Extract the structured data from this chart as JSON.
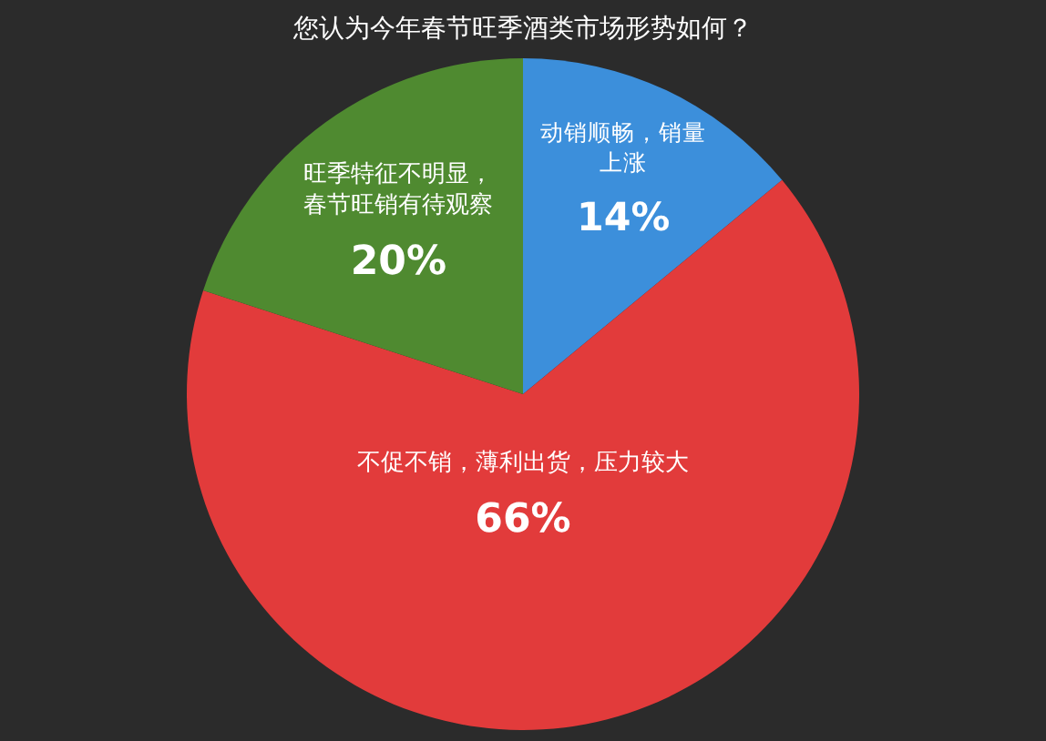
{
  "chart_data": {
    "type": "pie",
    "title": "您认为今年春节旺季酒类市场形势如何？",
    "categories": [
      "动销顺畅，销量上涨",
      "不促不销，薄利出货，压力较大",
      "旺季特征不明显，春节旺销有待观察"
    ],
    "values": [
      14,
      66,
      20
    ],
    "value_labels": [
      "14%",
      "66%",
      "20%"
    ],
    "colors": [
      "#3c8fdb",
      "#e23b3b",
      "#4f8a30"
    ],
    "legend": false
  }
}
